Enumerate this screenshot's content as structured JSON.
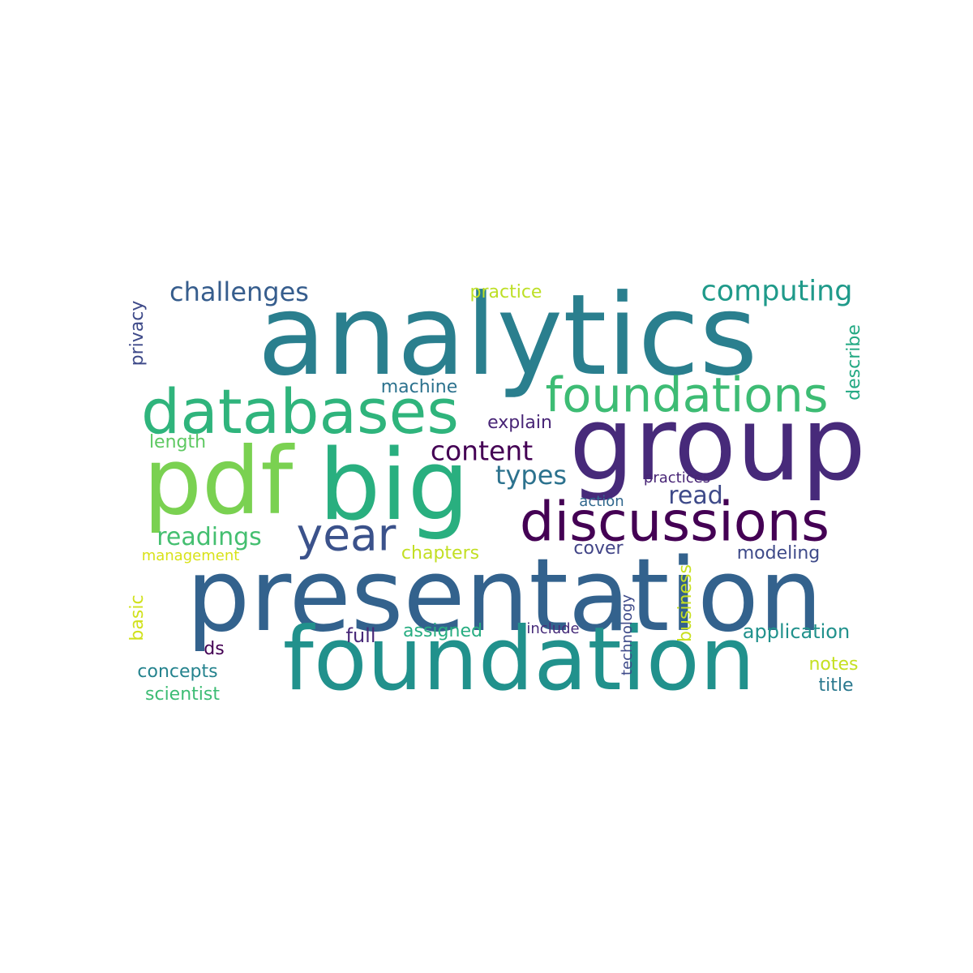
{
  "words": [
    {
      "id": "analytics",
      "text": "analytics",
      "color": "#2a7f8e"
    },
    {
      "id": "presentation",
      "text": "presentation",
      "color": "#33628d"
    },
    {
      "id": "foundation",
      "text": "foundation",
      "color": "#21918c"
    },
    {
      "id": "group",
      "text": "group",
      "color": "#472a7a"
    },
    {
      "id": "pdf",
      "text": "pdf",
      "color": "#7ad151"
    },
    {
      "id": "big",
      "text": "big",
      "color": "#29af7f"
    },
    {
      "id": "databases",
      "text": "databases",
      "color": "#2fb47c"
    },
    {
      "id": "discussions",
      "text": "discussions",
      "color": "#440154"
    },
    {
      "id": "foundations",
      "text": "foundations",
      "color": "#3dbc74"
    },
    {
      "id": "year",
      "text": "year",
      "color": "#3b528b"
    },
    {
      "id": "computing",
      "text": "computing",
      "color": "#1f9a8a"
    },
    {
      "id": "challenges",
      "text": "challenges",
      "color": "#365d8d"
    },
    {
      "id": "content",
      "text": "content",
      "color": "#440154"
    },
    {
      "id": "types",
      "text": "types",
      "color": "#2c728e"
    },
    {
      "id": "readings",
      "text": "readings",
      "color": "#44bf70"
    },
    {
      "id": "read",
      "text": "read",
      "color": "#3e4a89"
    },
    {
      "id": "machine",
      "text": "machine",
      "color": "#2c728e"
    },
    {
      "id": "explain",
      "text": "explain",
      "color": "#482576"
    },
    {
      "id": "practice",
      "text": "practice",
      "color": "#bddf26"
    },
    {
      "id": "length",
      "text": "length",
      "color": "#5ec962"
    },
    {
      "id": "privacy",
      "text": "privacy",
      "color": "#3e4a89"
    },
    {
      "id": "describe",
      "text": "describe",
      "color": "#23a983"
    },
    {
      "id": "practices",
      "text": "practices",
      "color": "#482576"
    },
    {
      "id": "action",
      "text": "action",
      "color": "#31688e"
    },
    {
      "id": "chapters",
      "text": "chapters",
      "color": "#c2df23"
    },
    {
      "id": "cover",
      "text": "cover",
      "color": "#414487"
    },
    {
      "id": "modeling",
      "text": "modeling",
      "color": "#3e4a89"
    },
    {
      "id": "management",
      "text": "management",
      "color": "#d8e219"
    },
    {
      "id": "basic",
      "text": "basic",
      "color": "#d0e11c"
    },
    {
      "id": "business",
      "text": "business",
      "color": "#c8e020"
    },
    {
      "id": "technology",
      "text": "technology",
      "color": "#3e4a89"
    },
    {
      "id": "application",
      "text": "application",
      "color": "#21918c"
    },
    {
      "id": "ds",
      "text": "ds",
      "color": "#440154"
    },
    {
      "id": "full",
      "text": "full",
      "color": "#482878"
    },
    {
      "id": "assigned",
      "text": "assigned",
      "color": "#27ad81"
    },
    {
      "id": "include",
      "text": "include",
      "color": "#472c7a"
    },
    {
      "id": "concepts",
      "text": "concepts",
      "color": "#25838e"
    },
    {
      "id": "notes",
      "text": "notes",
      "color": "#c5e021"
    },
    {
      "id": "scientist",
      "text": "scientist",
      "color": "#3dbc74"
    },
    {
      "id": "title",
      "text": "title",
      "color": "#2a788e"
    }
  ]
}
